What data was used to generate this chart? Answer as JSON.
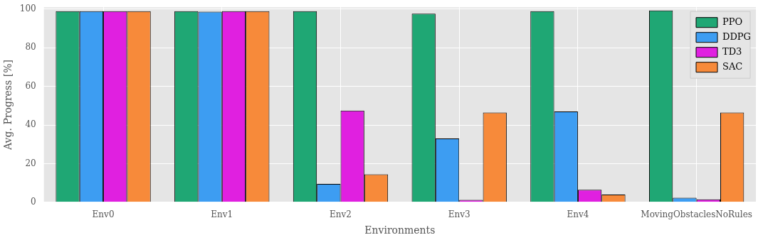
{
  "chart_data": {
    "type": "bar",
    "xlabel": "Environments",
    "ylabel": "Avg. Progress [%]",
    "categories": [
      "Env0",
      "Env1",
      "Env2",
      "Env3",
      "Env4",
      "MovingObstaclesNoRules"
    ],
    "series": [
      {
        "name": "PPO",
        "color": "#1fa774",
        "values": [
          99,
          99,
          99,
          97.7,
          99,
          99.3
        ]
      },
      {
        "name": "DDPG",
        "color": "#3d9df2",
        "values": [
          99,
          98.7,
          9.5,
          33,
          47,
          2.3
        ]
      },
      {
        "name": "TD3",
        "color": "#e020e0",
        "values": [
          99,
          99,
          47.5,
          1.2,
          6.5,
          1.5
        ]
      },
      {
        "name": "SAC",
        "color": "#f78a3a",
        "values": [
          99,
          99,
          14.5,
          46.5,
          4,
          46.5
        ]
      }
    ],
    "ylim": [
      0,
      101
    ],
    "yticks": [
      0,
      20,
      40,
      60,
      80,
      100
    ],
    "grid": true,
    "legend": "top right"
  }
}
